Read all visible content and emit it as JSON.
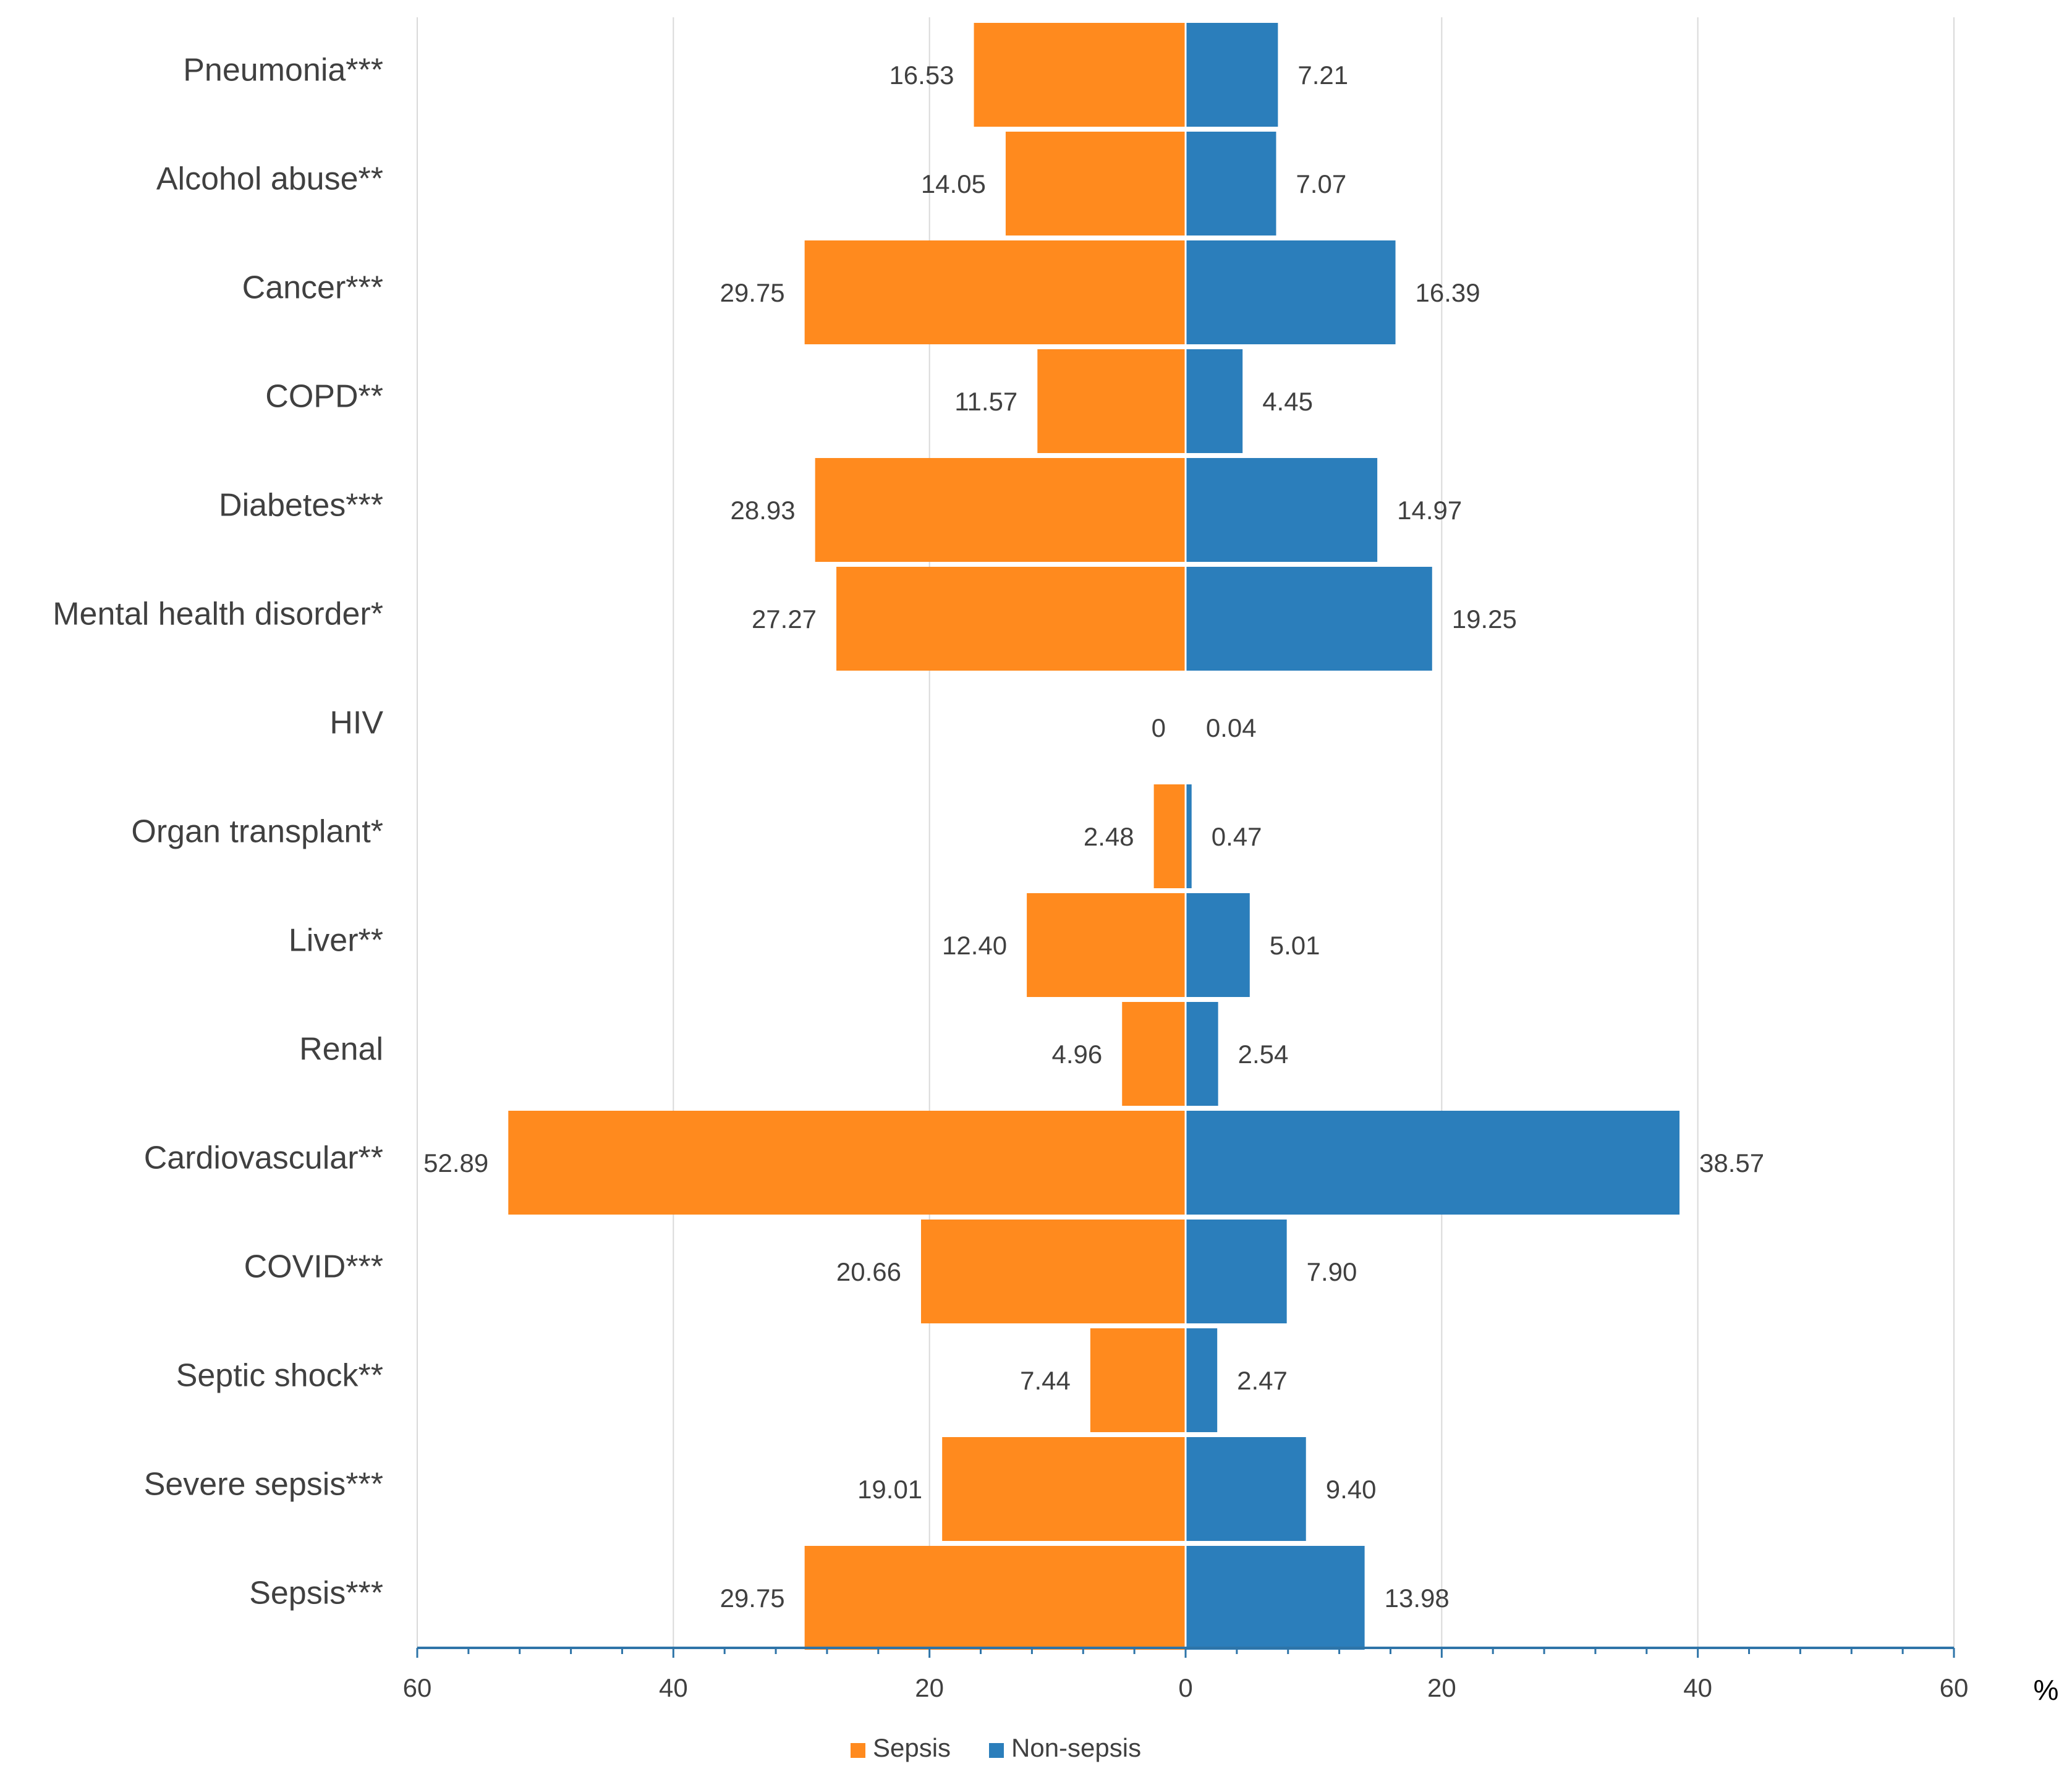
{
  "chart_data": {
    "type": "bar",
    "orientation": "horizontal",
    "layout": "diverging",
    "categories": [
      "Pneumonia***",
      "Alcohol abuse**",
      "Cancer***",
      "COPD**",
      "Diabetes***",
      "Mental health disorder*",
      "HIV",
      "Organ transplant*",
      "Liver**",
      "Renal",
      "Cardiovascular**",
      "COVID***",
      "Septic shock**",
      "Severe sepsis***",
      "Sepsis***"
    ],
    "series": [
      {
        "name": "Sepsis",
        "side": "left",
        "color": "#FF8A1E",
        "values": [
          16.53,
          14.05,
          29.75,
          11.57,
          28.93,
          27.27,
          0,
          2.48,
          12.4,
          4.96,
          52.89,
          20.66,
          7.44,
          19.01,
          29.75
        ],
        "labels": [
          "16.53",
          "14.05",
          "29.75",
          "11.57",
          "28.93",
          "27.27",
          "0",
          "2.48",
          "12.40",
          "4.96",
          "52.89",
          "20.66",
          "7.44",
          "19.01",
          "29.75"
        ]
      },
      {
        "name": "Non-sepsis",
        "side": "right",
        "color": "#2B7EBB",
        "values": [
          7.21,
          7.07,
          16.39,
          4.45,
          14.97,
          19.25,
          0.04,
          0.47,
          5.01,
          2.54,
          38.57,
          7.9,
          2.47,
          9.4,
          13.98
        ],
        "labels": [
          "7.21",
          "7.07",
          "16.39",
          "4.45",
          "14.97",
          "19.25",
          "0.04",
          "0.47",
          "5.01",
          "2.54",
          "38.57",
          "7.90",
          "2.47",
          "9.40",
          "13.98"
        ]
      }
    ],
    "xlim": [
      -60,
      60
    ],
    "x_ticks": [
      -60,
      -40,
      -20,
      0,
      20,
      40,
      60
    ],
    "x_tick_labels": [
      "60",
      "40",
      "20",
      "0",
      "20",
      "40",
      "60"
    ],
    "x_unit": "%",
    "grid": true,
    "legend_position": "bottom-center",
    "axis_color": "#2E74A8",
    "grid_color": "#D9D9D9",
    "title": "",
    "xlabel": "",
    "ylabel": ""
  }
}
